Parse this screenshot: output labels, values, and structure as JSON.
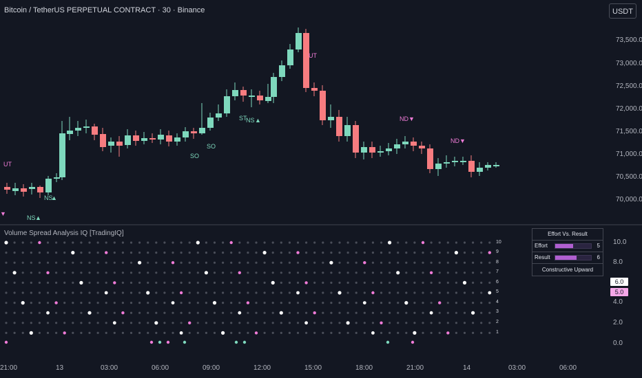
{
  "header": {
    "title": "Bitcoin / TetherUS PERPETUAL CONTRACT · 30 · Binance",
    "currency_button": "USDT"
  },
  "price_axis": {
    "labels": [
      "73,500.0",
      "73,000.0",
      "72,500.0",
      "72,000.0",
      "71,500.0",
      "71,000.0",
      "70,500.0",
      "70,000.0"
    ]
  },
  "indicator": {
    "title": "Volume Spread Analysis IQ [TradingIQ]",
    "axis_labels": [
      "10.0",
      "8.0",
      "4.0",
      "2.0",
      "0.0"
    ],
    "value_tags": [
      "6.0",
      "5.0"
    ],
    "value_tag_colors": [
      "#ffffff",
      "#f5a7e8"
    ],
    "row_levels": [
      "10",
      "9",
      "8",
      "7",
      "6",
      "5",
      "4",
      "3",
      "2",
      "1"
    ],
    "effort_panel": {
      "title": "Effort Vs. Result",
      "effort_label": "Effort",
      "effort_value": "5",
      "result_label": "Result",
      "result_value": "6",
      "footer": "Constructive Upward"
    }
  },
  "time_axis": {
    "labels": [
      "21:00",
      "13",
      "03:00",
      "06:00",
      "09:00",
      "12:00",
      "15:00",
      "18:00",
      "21:00",
      "14",
      "03:00",
      "06:00"
    ]
  },
  "signals": {
    "ut1": "UT",
    "ns1": "NS",
    "ns2": "NS",
    "so1": "SO",
    "so2": "SO",
    "st": "ST",
    "ns3": "NS",
    "ut2": "UT",
    "nd1": "ND",
    "nd2": "ND"
  },
  "colors": {
    "background": "#131722",
    "bull": "#7ed8bd",
    "bear": "#f77c80",
    "accent_pink": "#f07cd8",
    "accent_purple": "#b05fd0"
  }
}
